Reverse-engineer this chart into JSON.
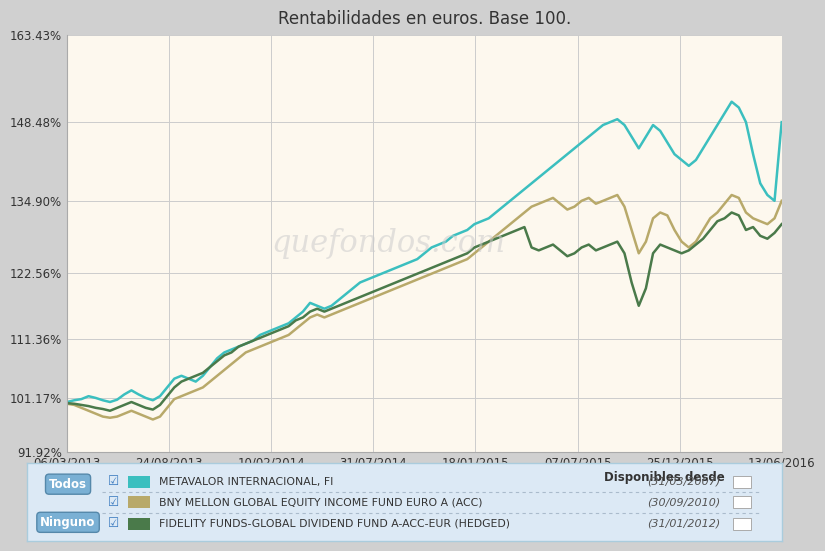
{
  "title": "Rentabilidades en euros. Base 100.",
  "watermark": "quefondos.com",
  "background_chart": "#fdf8ee",
  "background_outer": "#d0d0d0",
  "background_legend": "#dce9f5",
  "grid_color": "#cccccc",
  "yticks": [
    "91.92%",
    "101.17%",
    "111.36%",
    "122.56%",
    "134.90%",
    "148.48%",
    "163.43%"
  ],
  "yvalues": [
    91.92,
    101.17,
    111.36,
    122.56,
    134.9,
    148.48,
    163.43
  ],
  "xtick_labels": [
    "06/03/2013",
    "24/08/2013",
    "10/02/2014",
    "31/07/2014",
    "18/01/2015",
    "07/07/2015",
    "25/12/2015",
    "13/06/2016"
  ],
  "series": [
    {
      "name": "METAVALOR INTERNACIONAL, FI",
      "color": "#3bbfbf",
      "linewidth": 1.8,
      "date_avail": "(31/03/2007)",
      "x": [
        0,
        1,
        2,
        3,
        4,
        5,
        6,
        7,
        8,
        9,
        10,
        11,
        12,
        13,
        14,
        15,
        16,
        17,
        18,
        19,
        20,
        21,
        22,
        23,
        24,
        25,
        26,
        27,
        28,
        29,
        30,
        31,
        32,
        33,
        34,
        35,
        36,
        37,
        38,
        39,
        40,
        41,
        42,
        43,
        44,
        45,
        46,
        47,
        48,
        49,
        50,
        51,
        52,
        53,
        54,
        55,
        56,
        57,
        58,
        59,
        60,
        61,
        62,
        63,
        64,
        65,
        66,
        67,
        68,
        69,
        70,
        71,
        72,
        73,
        74,
        75,
        76,
        77,
        78,
        79,
        80,
        81,
        82,
        83,
        84,
        85,
        86,
        87,
        88,
        89,
        90,
        91,
        92,
        93,
        94,
        95,
        96,
        97,
        98,
        99,
        100
      ],
      "y": [
        100.5,
        100.8,
        101.0,
        101.5,
        101.2,
        100.8,
        100.5,
        100.9,
        101.8,
        102.5,
        101.8,
        101.2,
        100.8,
        101.5,
        103.0,
        104.5,
        105.0,
        104.5,
        104.0,
        105.0,
        106.5,
        108.0,
        109.0,
        109.5,
        110.0,
        110.5,
        111.0,
        112.0,
        112.5,
        113.0,
        113.5,
        114.0,
        115.0,
        116.0,
        117.5,
        117.0,
        116.5,
        117.0,
        118.0,
        119.0,
        120.0,
        121.0,
        121.5,
        122.0,
        122.5,
        123.0,
        123.5,
        124.0,
        124.5,
        125.0,
        126.0,
        127.0,
        127.5,
        128.0,
        129.0,
        129.5,
        130.0,
        131.0,
        131.5,
        132.0,
        133.0,
        134.0,
        135.0,
        136.0,
        137.0,
        138.0,
        139.0,
        140.0,
        141.0,
        142.0,
        143.0,
        144.0,
        145.0,
        146.0,
        147.0,
        148.0,
        148.5,
        149.0,
        148.0,
        146.0,
        144.0,
        146.0,
        148.0,
        147.0,
        145.0,
        143.0,
        142.0,
        141.0,
        142.0,
        144.0,
        146.0,
        148.0,
        150.0,
        152.0,
        151.0,
        148.5,
        143.0,
        138.0,
        136.0,
        135.0,
        148.5
      ]
    },
    {
      "name": "BNY MELLON GLOBAL EQUITY INCOME FUND EURO A (ACC)",
      "color": "#b8a96a",
      "linewidth": 1.8,
      "date_avail": "(30/09/2010)",
      "x": [
        0,
        1,
        2,
        3,
        4,
        5,
        6,
        7,
        8,
        9,
        10,
        11,
        12,
        13,
        14,
        15,
        16,
        17,
        18,
        19,
        20,
        21,
        22,
        23,
        24,
        25,
        26,
        27,
        28,
        29,
        30,
        31,
        32,
        33,
        34,
        35,
        36,
        37,
        38,
        39,
        40,
        41,
        42,
        43,
        44,
        45,
        46,
        47,
        48,
        49,
        50,
        51,
        52,
        53,
        54,
        55,
        56,
        57,
        58,
        59,
        60,
        61,
        62,
        63,
        64,
        65,
        66,
        67,
        68,
        69,
        70,
        71,
        72,
        73,
        74,
        75,
        76,
        77,
        78,
        79,
        80,
        81,
        82,
        83,
        84,
        85,
        86,
        87,
        88,
        89,
        90,
        91,
        92,
        93,
        94,
        95,
        96,
        97,
        98,
        99,
        100
      ],
      "y": [
        100.2,
        100.0,
        99.5,
        99.0,
        98.5,
        98.0,
        97.8,
        98.0,
        98.5,
        99.0,
        98.5,
        98.0,
        97.5,
        98.0,
        99.5,
        101.0,
        101.5,
        102.0,
        102.5,
        103.0,
        104.0,
        105.0,
        106.0,
        107.0,
        108.0,
        109.0,
        109.5,
        110.0,
        110.5,
        111.0,
        111.5,
        112.0,
        113.0,
        114.0,
        115.0,
        115.5,
        115.0,
        115.5,
        116.0,
        116.5,
        117.0,
        117.5,
        118.0,
        118.5,
        119.0,
        119.5,
        120.0,
        120.5,
        121.0,
        121.5,
        122.0,
        122.5,
        123.0,
        123.5,
        124.0,
        124.5,
        125.0,
        126.0,
        127.0,
        128.0,
        129.0,
        130.0,
        131.0,
        132.0,
        133.0,
        134.0,
        134.5,
        135.0,
        135.5,
        134.5,
        133.5,
        134.0,
        135.0,
        135.5,
        134.5,
        135.0,
        135.5,
        136.0,
        134.0,
        130.0,
        126.0,
        128.0,
        132.0,
        133.0,
        132.5,
        130.0,
        128.0,
        127.0,
        128.0,
        130.0,
        132.0,
        133.0,
        134.5,
        136.0,
        135.5,
        133.0,
        132.0,
        131.5,
        131.0,
        132.0,
        135.0
      ]
    },
    {
      "name": "FIDELITY FUNDS-GLOBAL DIVIDEND FUND A-ACC-EUR (HEDGED)",
      "color": "#4a7a4a",
      "linewidth": 1.8,
      "date_avail": "(31/01/2012)",
      "x": [
        0,
        1,
        2,
        3,
        4,
        5,
        6,
        7,
        8,
        9,
        10,
        11,
        12,
        13,
        14,
        15,
        16,
        17,
        18,
        19,
        20,
        21,
        22,
        23,
        24,
        25,
        26,
        27,
        28,
        29,
        30,
        31,
        32,
        33,
        34,
        35,
        36,
        37,
        38,
        39,
        40,
        41,
        42,
        43,
        44,
        45,
        46,
        47,
        48,
        49,
        50,
        51,
        52,
        53,
        54,
        55,
        56,
        57,
        58,
        59,
        60,
        61,
        62,
        63,
        64,
        65,
        66,
        67,
        68,
        69,
        70,
        71,
        72,
        73,
        74,
        75,
        76,
        77,
        78,
        79,
        80,
        81,
        82,
        83,
        84,
        85,
        86,
        87,
        88,
        89,
        90,
        91,
        92,
        93,
        94,
        95,
        96,
        97,
        98,
        99,
        100
      ],
      "y": [
        100.3,
        100.2,
        100.0,
        99.8,
        99.5,
        99.3,
        99.0,
        99.5,
        100.0,
        100.5,
        100.0,
        99.5,
        99.2,
        100.0,
        101.5,
        103.0,
        104.0,
        104.5,
        105.0,
        105.5,
        106.5,
        107.5,
        108.5,
        109.0,
        110.0,
        110.5,
        111.0,
        111.5,
        112.0,
        112.5,
        113.0,
        113.5,
        114.5,
        115.0,
        116.0,
        116.5,
        116.0,
        116.5,
        117.0,
        117.5,
        118.0,
        118.5,
        119.0,
        119.5,
        120.0,
        120.5,
        121.0,
        121.5,
        122.0,
        122.5,
        123.0,
        123.5,
        124.0,
        124.5,
        125.0,
        125.5,
        126.0,
        127.0,
        127.5,
        128.0,
        128.5,
        129.0,
        129.5,
        130.0,
        130.5,
        127.0,
        126.5,
        127.0,
        127.5,
        126.5,
        125.5,
        126.0,
        127.0,
        127.5,
        126.5,
        127.0,
        127.5,
        128.0,
        126.0,
        121.0,
        117.0,
        120.0,
        126.0,
        127.5,
        127.0,
        126.5,
        126.0,
        126.5,
        127.5,
        128.5,
        130.0,
        131.5,
        132.0,
        133.0,
        132.5,
        130.0,
        130.5,
        129.0,
        128.5,
        129.5,
        131.0
      ]
    }
  ],
  "legend": {
    "todos_color": "#7ab0d4",
    "ninguno_color": "#7ab0d4",
    "box_color": "#dce9f5",
    "border_color": "#aaccdd",
    "header": "Disponibles desde",
    "checkbox_color": "#3a7abf"
  }
}
